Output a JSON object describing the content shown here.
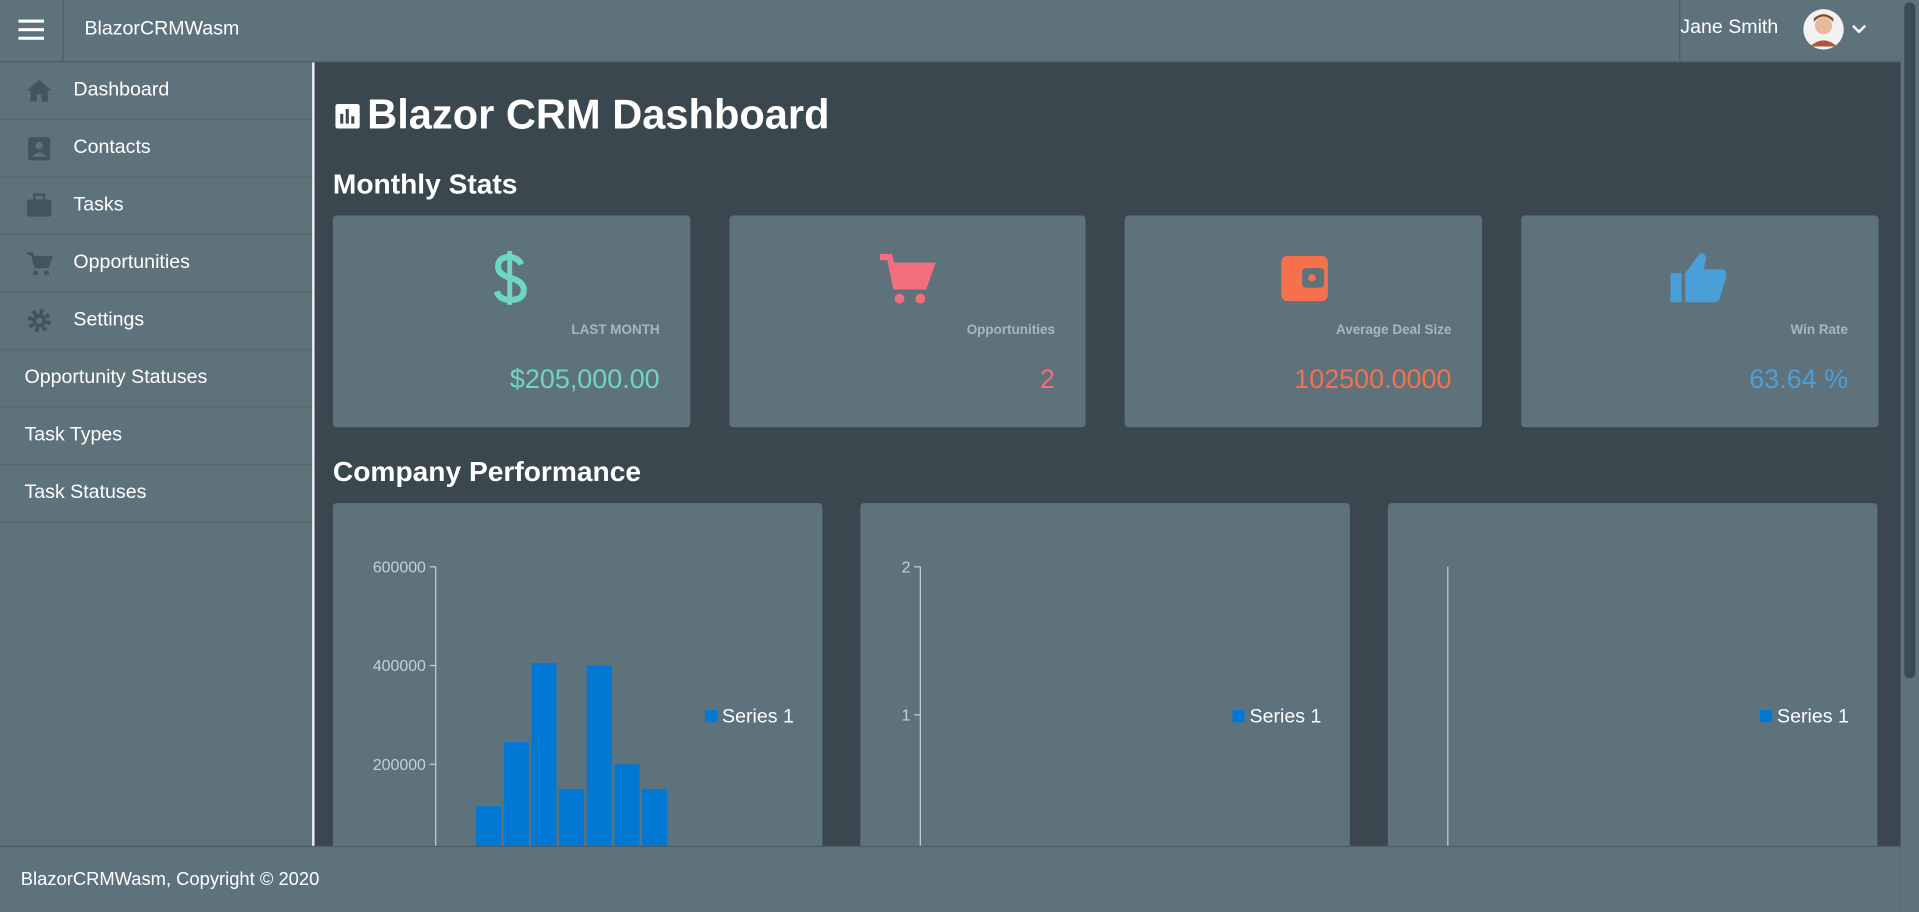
{
  "header": {
    "app_name": "BlazorCRMWasm",
    "user_name": "Jane Smith"
  },
  "nav": [
    "Dashboard",
    "Contacts",
    "Tasks",
    "Opportunities",
    "Settings",
    "Opportunity Statuses",
    "Task Types",
    "Task Statuses"
  ],
  "page_title": "Blazor CRM Dashboard",
  "stats_heading": "Monthly Stats",
  "stats": [
    {
      "label": "LAST MONTH",
      "value": "$205,000.00",
      "color": "#6fd6c4"
    },
    {
      "label": "Opportunities",
      "value": "2",
      "color": "#f26f7f"
    },
    {
      "label": "Average Deal Size",
      "value": "102500.0000",
      "color": "#f4714c"
    },
    {
      "label": "Win Rate",
      "value": "63.64 %",
      "color": "#4a9fd8"
    }
  ],
  "performance_heading": "Company Performance",
  "charts": [
    {
      "type": "bar",
      "ylim": [
        0,
        600000
      ],
      "yticks": [
        200000,
        400000,
        600000
      ],
      "series": [
        {
          "name": "Series 1",
          "color": "#0078d4",
          "values": [
            115000,
            245000,
            405000,
            150000,
            400000,
            200000,
            150000
          ]
        }
      ]
    },
    {
      "type": "bar",
      "ylim": [
        0,
        2
      ],
      "yticks": [
        1,
        2
      ],
      "series": [
        {
          "name": "Series 1",
          "color": "#0078d4",
          "values": []
        }
      ]
    },
    {
      "type": "bar",
      "yticks": [],
      "series": [
        {
          "name": "Series 1",
          "color": "#0078d4",
          "values": []
        }
      ]
    }
  ],
  "footer": "BlazorCRMWasm, Copyright © 2020"
}
